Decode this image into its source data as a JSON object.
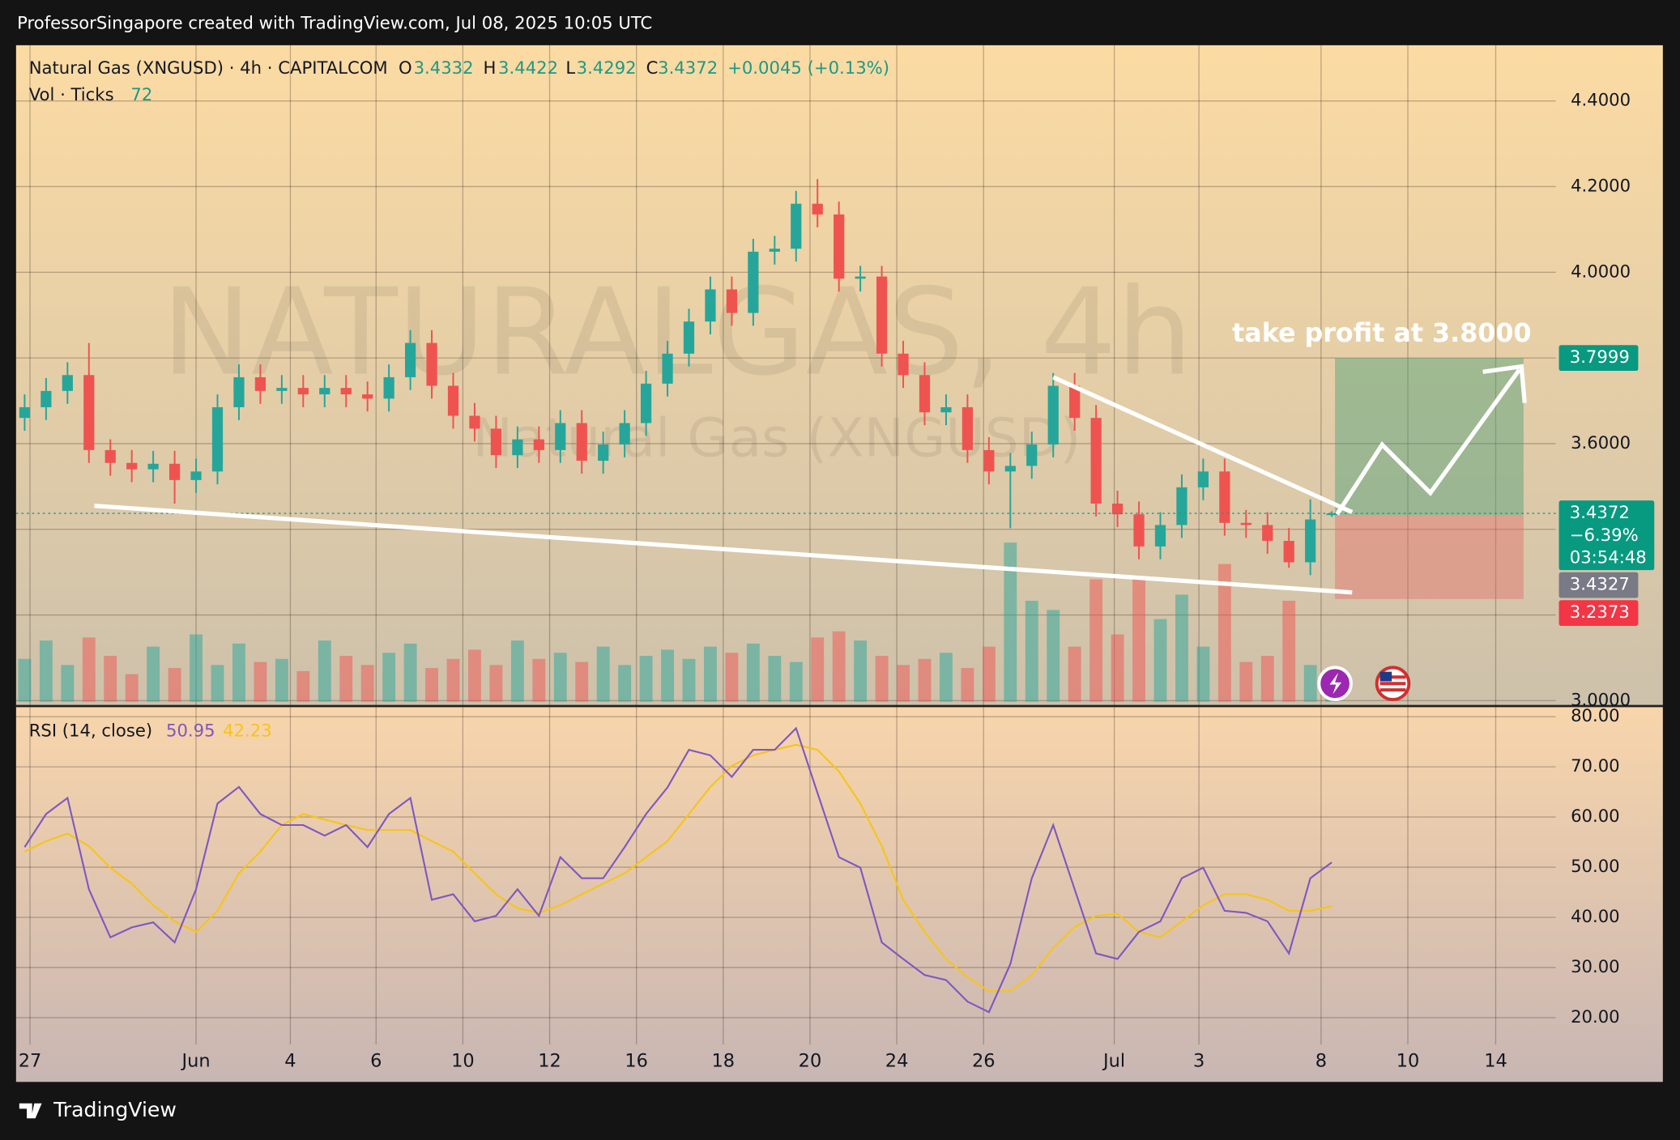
{
  "header": {
    "attribution": "ProfessorSingapore created with TradingView.com, Jul 08, 2025 10:05 UTC"
  },
  "footer": {
    "brand": "TradingView"
  },
  "chart_data": {
    "type": "candlestick",
    "title": "Natural Gas (XNGUSD) · 4h · CAPITALCOM",
    "watermark": "NATURALGAS, 4h",
    "watermark_subtitle": "Natural Gas (XNGUSD)",
    "ohlc_letters": [
      "O",
      "H",
      "L",
      "C"
    ],
    "change": "+0.0045 (+0.13%)",
    "up_color": "#26a69a",
    "down_color": "#ef5350",
    "grid": true,
    "x": [
      0,
      1,
      2,
      3,
      4,
      5,
      6,
      7,
      8,
      9,
      10,
      11,
      12,
      13,
      14,
      15,
      16,
      17,
      18,
      19,
      20,
      21,
      22,
      23,
      24,
      25,
      26,
      27,
      28,
      29,
      30,
      31,
      32,
      33,
      34,
      35,
      36,
      37,
      38,
      39,
      40,
      41,
      42,
      43,
      44,
      45,
      46,
      47,
      48,
      49,
      50,
      51,
      52,
      53,
      54,
      55,
      56,
      57,
      58,
      59,
      60,
      61
    ],
    "open": [
      3.66,
      3.685,
      3.723,
      3.76,
      3.585,
      3.555,
      3.54,
      3.553,
      3.515,
      3.535,
      3.685,
      3.755,
      3.723,
      3.73,
      3.715,
      3.73,
      3.715,
      3.705,
      3.755,
      3.835,
      3.735,
      3.665,
      3.635,
      3.573,
      3.61,
      3.585,
      3.648,
      3.56,
      3.598,
      3.648,
      3.74,
      3.81,
      3.885,
      3.96,
      3.905,
      4.048,
      4.055,
      4.16,
      4.135,
      3.985,
      3.99,
      3.81,
      3.76,
      3.673,
      3.685,
      3.585,
      3.535,
      3.548,
      3.598,
      3.735,
      3.66,
      3.46,
      3.435,
      3.36,
      3.41,
      3.498,
      3.535,
      3.415,
      3.41,
      3.373,
      3.323,
      3.4332
    ],
    "high": [
      3.715,
      3.753,
      3.79,
      3.835,
      3.61,
      3.585,
      3.583,
      3.583,
      3.565,
      3.715,
      3.785,
      3.785,
      3.76,
      3.76,
      3.76,
      3.76,
      3.745,
      3.785,
      3.865,
      3.865,
      3.765,
      3.695,
      3.665,
      3.64,
      3.64,
      3.678,
      3.678,
      3.628,
      3.678,
      3.77,
      3.84,
      3.915,
      3.99,
      3.99,
      4.078,
      4.085,
      4.19,
      4.2175,
      4.165,
      4.015,
      4.015,
      3.84,
      3.79,
      3.715,
      3.715,
      3.615,
      3.578,
      3.628,
      3.765,
      3.765,
      3.69,
      3.49,
      3.465,
      3.44,
      3.528,
      3.565,
      3.565,
      3.445,
      3.44,
      3.403,
      3.47,
      3.4422
    ],
    "low": [
      3.63,
      3.655,
      3.693,
      3.555,
      3.525,
      3.51,
      3.51,
      3.46,
      3.485,
      3.505,
      3.655,
      3.693,
      3.693,
      3.685,
      3.685,
      3.685,
      3.675,
      3.675,
      3.725,
      3.705,
      3.635,
      3.605,
      3.543,
      3.543,
      3.555,
      3.555,
      3.53,
      3.53,
      3.568,
      3.618,
      3.71,
      3.78,
      3.855,
      3.875,
      3.875,
      4.018,
      4.025,
      4.105,
      3.955,
      3.955,
      3.78,
      3.73,
      3.643,
      3.643,
      3.555,
      3.505,
      3.4025,
      3.518,
      3.568,
      3.63,
      3.43,
      3.405,
      3.33,
      3.33,
      3.38,
      3.468,
      3.385,
      3.38,
      3.343,
      3.31,
      3.293,
      3.4292
    ],
    "close": [
      3.685,
      3.723,
      3.76,
      3.585,
      3.555,
      3.54,
      3.553,
      3.515,
      3.535,
      3.685,
      3.755,
      3.723,
      3.73,
      3.715,
      3.73,
      3.715,
      3.705,
      3.755,
      3.835,
      3.735,
      3.665,
      3.635,
      3.573,
      3.61,
      3.585,
      3.648,
      3.56,
      3.598,
      3.648,
      3.74,
      3.81,
      3.885,
      3.96,
      3.905,
      4.048,
      4.055,
      4.16,
      4.135,
      3.985,
      3.99,
      3.81,
      3.76,
      3.673,
      3.685,
      3.585,
      3.535,
      3.548,
      3.598,
      3.735,
      3.66,
      3.46,
      3.435,
      3.36,
      3.41,
      3.498,
      3.535,
      3.415,
      3.41,
      3.373,
      3.323,
      3.423,
      3.4372
    ],
    "xlim": [
      -0.4,
      71.45
    ],
    "xticks": [
      {
        "value": 0.25,
        "label": "27"
      },
      {
        "value": 8.0,
        "label": "Jun"
      },
      {
        "value": 12.4,
        "label": "4"
      },
      {
        "value": 16.4,
        "label": "6"
      },
      {
        "value": 20.45,
        "label": "10"
      },
      {
        "value": 24.5,
        "label": "12"
      },
      {
        "value": 28.55,
        "label": "16"
      },
      {
        "value": 32.6,
        "label": "18"
      },
      {
        "value": 36.65,
        "label": "20"
      },
      {
        "value": 40.7,
        "label": "24"
      },
      {
        "value": 44.75,
        "label": "26"
      },
      {
        "value": 50.85,
        "label": "Jul"
      },
      {
        "value": 54.8,
        "label": "3"
      },
      {
        "value": 60.5,
        "label": "8"
      },
      {
        "value": 64.55,
        "label": "10"
      },
      {
        "value": 68.65,
        "label": "14"
      }
    ],
    "ylim": [
      2.99,
      4.53
    ],
    "yticks": [
      {
        "value": 3.0,
        "label": "3.0000"
      },
      {
        "value": 3.2,
        "label": "3.2000"
      },
      {
        "value": 3.4,
        "label": "3.4000"
      },
      {
        "value": 3.6,
        "label": "3.6000"
      },
      {
        "value": 3.8,
        "label": "3.8000"
      },
      {
        "value": 4.0,
        "label": "4.0000"
      },
      {
        "value": 4.2,
        "label": "4.2000"
      },
      {
        "value": 4.4,
        "label": "4.4000"
      }
    ],
    "volume": {
      "label": "Vol · Ticks",
      "vlim": [
        0,
        700
      ],
      "values": [
        140,
        200,
        120,
        210,
        150,
        90,
        180,
        110,
        220,
        120,
        190,
        130,
        140,
        100,
        200,
        150,
        120,
        160,
        190,
        110,
        140,
        170,
        120,
        200,
        140,
        160,
        130,
        180,
        120,
        150,
        170,
        140,
        180,
        160,
        190,
        150,
        130,
        210,
        230,
        200,
        150,
        120,
        140,
        160,
        110,
        180,
        520,
        330,
        300,
        180,
        400,
        220,
        400,
        270,
        350,
        180,
        450,
        130,
        150,
        330,
        120,
        72
      ]
    },
    "last_price": {
      "change": "−6.39%",
      "countdown": "03:54:48"
    },
    "position": {
      "annotation": "take profit at 3.8000",
      "target": 3.7999,
      "entry": 3.4327,
      "stop": 3.2373
    },
    "rsi": {
      "label": "RSI (14, close)",
      "color": "#7e57c2",
      "ma_color": "#f5c518",
      "values": [
        54,
        60.6,
        63.8,
        45.6,
        36,
        38,
        39,
        35,
        45.6,
        62.7,
        66,
        60.6,
        58.4,
        58.4,
        56.3,
        58.4,
        54,
        60.6,
        63.8,
        43.5,
        44.6,
        39.2,
        40.3,
        45.6,
        40.3,
        52,
        47.8,
        47.8,
        54,
        60.6,
        65.9,
        73.4,
        72.3,
        68,
        73.4,
        73.4,
        77.7,
        64.8,
        52,
        49.9,
        35,
        31.7,
        28.5,
        27.5,
        23.2,
        21.1,
        30.7,
        47.8,
        58.4,
        45.6,
        32.8,
        31.7,
        37.1,
        39.2,
        47.8,
        49.9,
        41.3,
        40.9,
        39.2,
        32.8,
        47.8,
        50.95
      ],
      "ma_values": [
        53.1,
        55.2,
        56.7,
        54.2,
        49.9,
        46.7,
        42.4,
        39.2,
        37.1,
        41.3,
        48.8,
        53.1,
        58.4,
        60.6,
        59.5,
        58.4,
        57.4,
        57.4,
        57.4,
        55.2,
        53.1,
        48.8,
        44.6,
        41.8,
        40.9,
        42.4,
        44.6,
        46.7,
        48.8,
        52,
        55.2,
        60.6,
        66,
        70.2,
        72.3,
        73.4,
        74.4,
        73.4,
        69.1,
        62.7,
        54.2,
        43.5,
        37.1,
        31.7,
        28.1,
        25.3,
        25.3,
        28.5,
        33.9,
        38.1,
        40.3,
        40.7,
        37.1,
        36,
        39.2,
        42.4,
        44.6,
        44.6,
        43.5,
        41.3,
        41.3,
        42.23
      ],
      "ylim": [
        14.66,
        81.92
      ],
      "yticks": [
        {
          "value": 20,
          "label": "20.00"
        },
        {
          "value": 30,
          "label": "30.00"
        },
        {
          "value": 40,
          "label": "40.00"
        },
        {
          "value": 50,
          "label": "50.00"
        },
        {
          "value": 60,
          "label": "60.00"
        },
        {
          "value": 70,
          "label": "70.00"
        },
        {
          "value": 80,
          "label": "80.00"
        }
      ]
    }
  }
}
